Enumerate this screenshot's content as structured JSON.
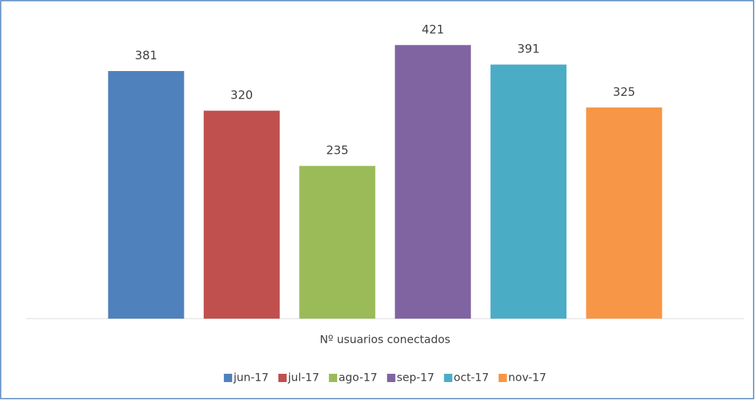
{
  "chart_data": {
    "type": "bar",
    "categories": [
      "Nº usuarios conectados"
    ],
    "series": [
      {
        "name": "jun-17",
        "color": "#4f81bd",
        "values": [
          381
        ]
      },
      {
        "name": "jul-17",
        "color": "#c0504d",
        "values": [
          320
        ]
      },
      {
        "name": "ago-17",
        "color": "#9bbb59",
        "values": [
          235
        ]
      },
      {
        "name": "sep-17",
        "color": "#8064a2",
        "values": [
          421
        ]
      },
      {
        "name": "oct-17",
        "color": "#4bacc6",
        "values": [
          391
        ]
      },
      {
        "name": "nov-17",
        "color": "#f79646",
        "values": [
          325
        ]
      }
    ],
    "ylim": [
      0,
      450
    ],
    "legend": "bottom",
    "data_labels": true
  }
}
